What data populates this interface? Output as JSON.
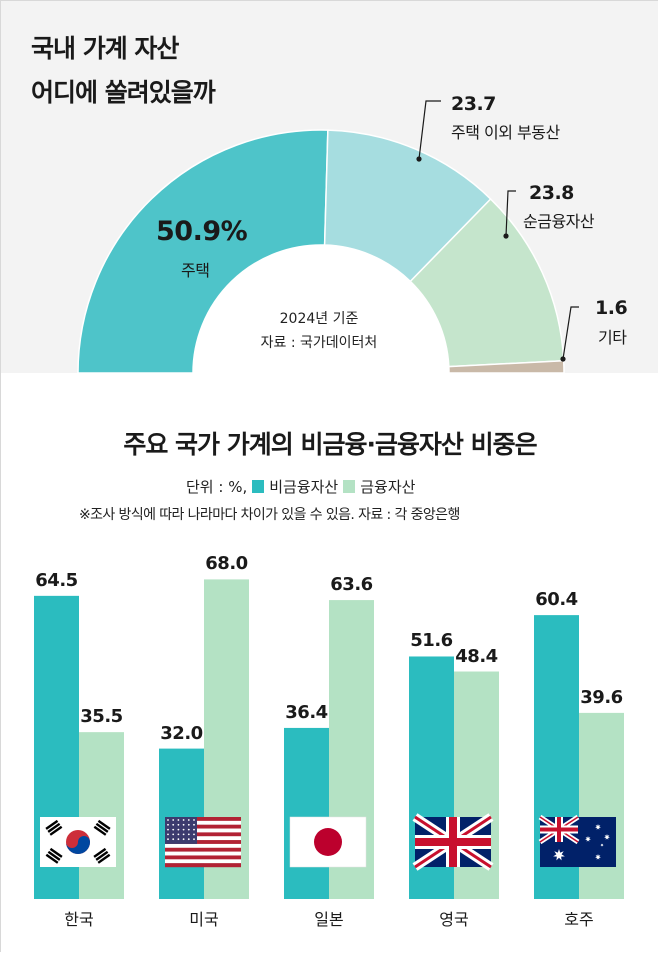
{
  "colors": {
    "housing": "#4ec4c9",
    "other_realestate": "#a6dde0",
    "net_financial": "#c5e5cc",
    "other": "#c9b9a8",
    "non_financial": "#2bbcbf",
    "financial": "#b4e2c4"
  },
  "top": {
    "title_line1": "국내 가계 자산",
    "title_line2": "어디에 쏠려있을까",
    "center_line1": "2024년 기준",
    "center_line2": "자료 : 국가데이터처",
    "housing_label": "주택",
    "housing_value": "50.9%"
  },
  "chart_data": [
    {
      "type": "pie",
      "title": "국내 가계 자산 어디에 쏠려있을까",
      "slices": [
        {
          "label": "주택",
          "value": 50.9,
          "display": "50.9%"
        },
        {
          "label": "주택 이외 부동산",
          "value": 23.7,
          "display": "23.7"
        },
        {
          "label": "순금융자산",
          "value": 23.8,
          "display": "23.8"
        },
        {
          "label": "기타",
          "value": 1.6,
          "display": "1.6"
        }
      ]
    },
    {
      "type": "bar",
      "title": "주요 국가 가계의 비금융·금융자산 비중은",
      "categories": [
        "한국",
        "미국",
        "일본",
        "영국",
        "호주"
      ],
      "series": [
        {
          "name": "비금융자산",
          "values": [
            64.5,
            32.0,
            36.4,
            51.6,
            60.4
          ],
          "display": [
            "64.5",
            "32.0",
            "36.4",
            "51.6",
            "60.4"
          ]
        },
        {
          "name": "금융자산",
          "values": [
            35.5,
            68.0,
            63.6,
            48.4,
            39.6
          ],
          "display": [
            "35.5",
            "68.0",
            "63.6",
            "48.4",
            "39.6"
          ]
        }
      ],
      "ylim": [
        0,
        100
      ]
    }
  ],
  "bottom": {
    "title": "주요 국가 가계의 비금융·금융자산 비중은",
    "unit_prefix": "단위 : %,",
    "legend_nonfin": "비금융자산",
    "legend_fin": "금융자산",
    "note": "※조사 방식에 따라 나라마다 차이가 있을 수 있음. 자료 : 각 중앙은행"
  },
  "flags": [
    "korea-flag",
    "usa-flag",
    "japan-flag",
    "uk-flag",
    "australia-flag"
  ]
}
